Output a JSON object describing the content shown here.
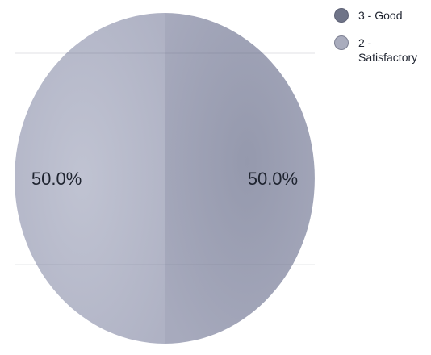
{
  "chart_data": {
    "type": "pie",
    "categories": [
      "3 - Good",
      "2 - Satisfactory"
    ],
    "values": [
      50,
      50
    ],
    "data_labels": [
      "50.0%",
      "50.0%"
    ],
    "colors": [
      "#9b9eb2",
      "#b7bacb"
    ],
    "legend": {
      "placement": "top-right",
      "entries": [
        "3 - Good",
        "2 - Satisfactory"
      ],
      "colors": [
        "#6f7488",
        "#a9acbd"
      ]
    }
  }
}
